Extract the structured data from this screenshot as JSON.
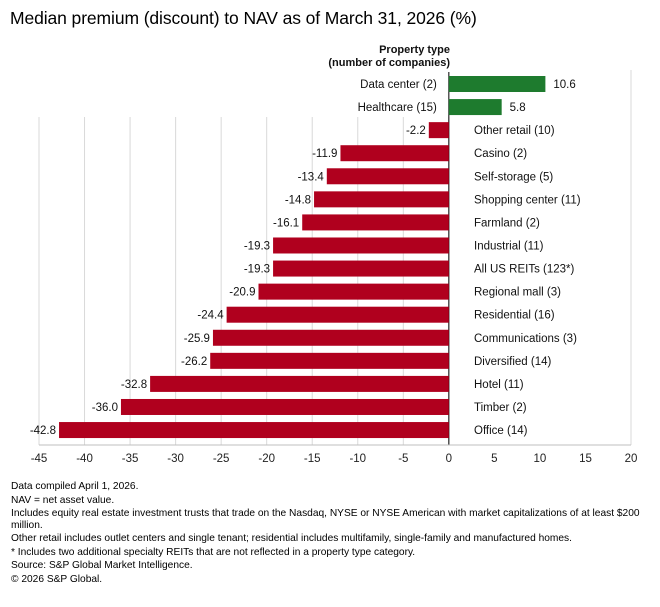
{
  "title": "Median premium (discount) to NAV as of March 31, 2026 (%)",
  "chart_data": {
    "type": "bar",
    "orientation": "horizontal",
    "title": "Median premium (discount) to NAV as of March 31, 2026 (%)",
    "category_header": [
      "Property type",
      "(number of companies)"
    ],
    "categories": [
      "Data center (2)",
      "Healthcare (15)",
      "Other retail (10)",
      "Casino (2)",
      "Self-storage (5)",
      "Shopping center (11)",
      "Farmland (2)",
      "Industrial (11)",
      "All US REITs (123*)",
      "Regional mall (3)",
      "Residential (16)",
      "Communications (3)",
      "Diversified (14)",
      "Hotel (11)",
      "Timber (2)",
      "Office (14)"
    ],
    "values": [
      10.6,
      5.8,
      -2.2,
      -11.9,
      -13.4,
      -14.8,
      -16.1,
      -19.3,
      -19.3,
      -20.9,
      -24.4,
      -25.9,
      -26.2,
      -32.8,
      -36.0,
      -42.8
    ],
    "value_labels": [
      "10.6",
      "5.8",
      "-2.2",
      "-11.9",
      "-13.4",
      "-14.8",
      "-16.1",
      "-19.3",
      "-19.3",
      "-20.9",
      "-24.4",
      "-25.9",
      "-26.2",
      "-32.8",
      "-36.0",
      "-42.8"
    ],
    "xlim": [
      -45,
      20
    ],
    "x_ticks": [
      -45,
      -40,
      -35,
      -30,
      -25,
      -20,
      -15,
      -10,
      -5,
      0,
      5,
      10,
      15,
      20
    ],
    "x_tick_labels": [
      "-45",
      "-40",
      "-35",
      "-30",
      "-25",
      "-20",
      "-15",
      "-10",
      "-5",
      "0",
      "5",
      "10",
      "15",
      "20"
    ],
    "grid": true,
    "colors": {
      "positive": "#1e7b2e",
      "negative": "#b0001e",
      "grid": "#d9d9d9",
      "axis": "#000000"
    }
  },
  "notes": [
    "Data compiled April 1, 2026.",
    "NAV = net asset value.",
    "Includes equity real estate investment trusts that trade on the Nasdaq, NYSE or NYSE American with market capitalizations of at least $200 million.",
    "Other retail includes outlet centers and single tenant; residential includes multifamily, single-family and manufactured homes.",
    "* Includes two additional specialty REITs that are not reflected in a property type category.",
    "Source: S&P Global Market Intelligence.",
    "© 2026 S&P Global."
  ]
}
